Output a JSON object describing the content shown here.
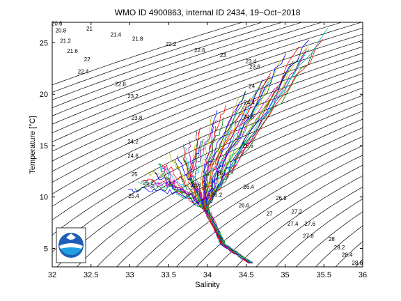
{
  "chart_data": {
    "type": "line",
    "title": "WMO ID 4900863, internal ID 2434, 19−Oct−2018",
    "xlabel": "Salinity",
    "ylabel": "Temperature [°C]",
    "xlim": [
      32,
      36
    ],
    "ylim": [
      3.2,
      27
    ],
    "xticks": [
      32,
      32.5,
      33,
      33.5,
      34,
      34.5,
      35,
      35.5,
      36
    ],
    "xtick_labels": [
      "32",
      "32.5",
      "33",
      "33.5",
      "34",
      "34.5",
      "35",
      "35.5",
      "36"
    ],
    "yticks": [
      5,
      10,
      15,
      20,
      25
    ],
    "ytick_labels": [
      "5",
      "10",
      "15",
      "20",
      "25"
    ],
    "grid": false,
    "legend": "none",
    "sigma_contours": {
      "levels": [
        20.6,
        20.8,
        21,
        21.2,
        21.4,
        21.6,
        21.8,
        22,
        22.2,
        22.4,
        22.6,
        22.8,
        23,
        23.2,
        23.4,
        23.6,
        23.8,
        24,
        24.2,
        24.4,
        24.6,
        24.8,
        25,
        25.2,
        25.4,
        25.6,
        25.8,
        26,
        26.2,
        26.4,
        26.6,
        26.8,
        27,
        27.2,
        27.4,
        27.6,
        27.8,
        28,
        28.2,
        28.4,
        28.6
      ],
      "labels": [
        {
          "text": "20.6",
          "s": 32.06,
          "t": 26.7
        },
        {
          "text": "20.8",
          "s": 32.11,
          "t": 26.0
        },
        {
          "text": "21",
          "s": 32.48,
          "t": 26.2
        },
        {
          "text": "21.2",
          "s": 32.17,
          "t": 25.0
        },
        {
          "text": "21.4",
          "s": 32.82,
          "t": 25.6
        },
        {
          "text": "21.6",
          "s": 32.26,
          "t": 24.0
        },
        {
          "text": "21.8",
          "s": 33.1,
          "t": 25.2
        },
        {
          "text": "22",
          "s": 32.45,
          "t": 23.2
        },
        {
          "text": "22.2",
          "s": 33.53,
          "t": 24.7
        },
        {
          "text": "22.4",
          "s": 32.4,
          "t": 22.0
        },
        {
          "text": "22.6",
          "s": 33.9,
          "t": 24.1
        },
        {
          "text": "22.8",
          "s": 32.88,
          "t": 20.8
        },
        {
          "text": "23",
          "s": 34.2,
          "t": 23.6
        },
        {
          "text": "23.2",
          "s": 33.04,
          "t": 19.6
        },
        {
          "text": "23.4",
          "s": 34.56,
          "t": 23.0
        },
        {
          "text": "23.6",
          "s": 34.61,
          "t": 22.5
        },
        {
          "text": "23.8",
          "s": 33.09,
          "t": 17.5
        },
        {
          "text": "24",
          "s": 34.57,
          "t": 20.6
        },
        {
          "text": "24.2",
          "s": 33.04,
          "t": 15.2
        },
        {
          "text": "24.4",
          "s": 34.54,
          "t": 19.0
        },
        {
          "text": "24.6",
          "s": 33.04,
          "t": 13.8
        },
        {
          "text": "24.8",
          "s": 34.53,
          "t": 17.6
        },
        {
          "text": "25",
          "s": 33.06,
          "t": 12.0
        },
        {
          "text": "25.2",
          "s": 33.24,
          "t": 11.2
        },
        {
          "text": "25.4",
          "s": 33.05,
          "t": 9.9
        },
        {
          "text": "25.6",
          "s": 34.52,
          "t": 14.8
        },
        {
          "text": "25.8",
          "s": 33.85,
          "t": 11.0
        },
        {
          "text": "26",
          "s": 34.16,
          "t": 12.1
        },
        {
          "text": "26.2",
          "s": 34.12,
          "t": 10.0
        },
        {
          "text": "26.4",
          "s": 34.53,
          "t": 10.8
        },
        {
          "text": "26.6",
          "s": 34.47,
          "t": 9.0
        },
        {
          "text": "26.8",
          "s": 34.95,
          "t": 9.7
        },
        {
          "text": "27",
          "s": 34.8,
          "t": 8.2
        },
        {
          "text": "27.2",
          "s": 35.15,
          "t": 8.4
        },
        {
          "text": "27.4",
          "s": 35.1,
          "t": 7.2
        },
        {
          "text": "27.6",
          "s": 35.32,
          "t": 7.2
        },
        {
          "text": "27.8",
          "s": 35.3,
          "t": 6.0
        },
        {
          "text": "28",
          "s": 35.6,
          "t": 5.7
        },
        {
          "text": "28.2",
          "s": 35.7,
          "t": 4.9
        },
        {
          "text": "28.4",
          "s": 35.8,
          "t": 4.2
        },
        {
          "text": "28.6",
          "s": 35.93,
          "t": 3.4
        }
      ]
    },
    "profiles": {
      "count": 60,
      "colors": [
        "#0000ff",
        "#008000",
        "#ff0000",
        "#00bfbf",
        "#bf00bf",
        "#bfbf00",
        "#404040"
      ],
      "deep_point": [
        34.55,
        3.6
      ],
      "thermocline_point": [
        33.97,
        9.0
      ],
      "surface_range_s": [
        33.0,
        35.5
      ],
      "surface_range_t": [
        10.5,
        26.0
      ]
    },
    "logo": "noaa-logo"
  }
}
